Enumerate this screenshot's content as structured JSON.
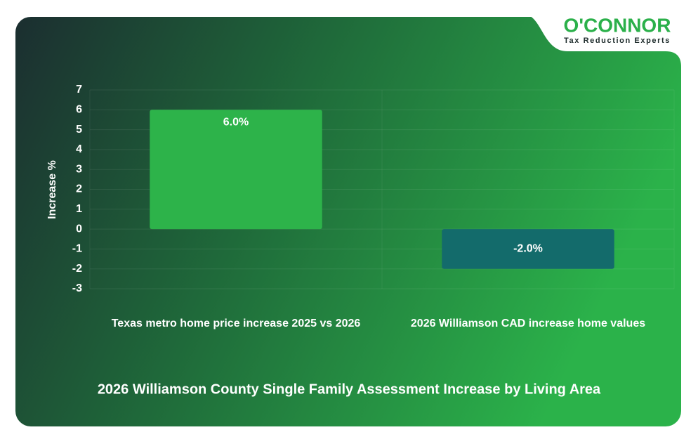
{
  "logo": {
    "name": "O'CONNOR",
    "tagline": "Tax Reduction Experts"
  },
  "chart_data": {
    "type": "bar",
    "title": "2026 Williamson County Single Family Assessment Increase by Living Area",
    "y_label": "Increase %",
    "categories": [
      "Texas metro home price increase 2025 vs 2026",
      "2026 Williamson CAD increase home values"
    ],
    "values": [
      6.0,
      -2.0
    ],
    "value_labels": [
      "6.0%",
      "-2.0%"
    ],
    "colors": [
      "#2db34a",
      "#136b6b"
    ],
    "ylim": [
      -3,
      7
    ],
    "yticks": [
      -3,
      -2,
      -1,
      0,
      1,
      2,
      3,
      4,
      5,
      6,
      7
    ],
    "grid": true
  }
}
